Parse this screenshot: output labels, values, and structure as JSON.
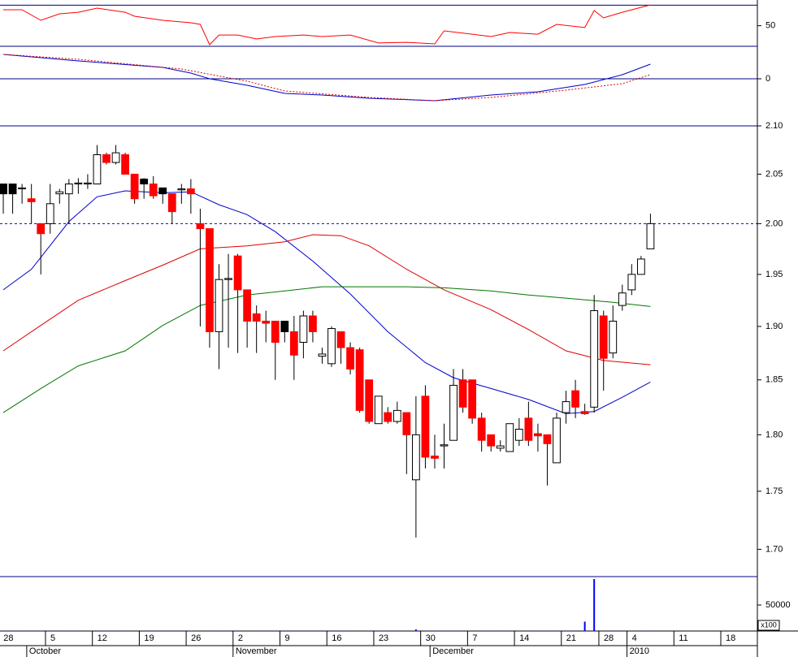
{
  "chart_data": [
    {
      "type": "candlestick",
      "log_scale": true,
      "xlim": [
        -0.35,
        80.4
      ],
      "ylim": [
        1.677,
        2.1
      ],
      "yticks": [
        {
          "value": 2.1,
          "label": "2.10"
        },
        2.05,
        {
          "value": 2.0,
          "label": "2.00"
        },
        1.95,
        {
          "value": 1.9,
          "label": "1.90"
        },
        1.85,
        {
          "value": 1.8,
          "label": "1.80"
        },
        1.75,
        {
          "value": 1.7,
          "label": "1.70"
        }
      ],
      "hlines": [
        2.0
      ],
      "hline_color": "#0000cc",
      "hline_dash": true,
      "open": [
        2.04,
        2.04,
        2.035,
        2.025,
        2.0,
        2.0,
        2.03,
        2.03,
        2.04,
        2.04,
        2.04,
        2.07,
        2.062,
        2.07,
        2.05,
        2.045,
        2.04,
        2.036,
        2.03,
        2.034,
        2.035,
        2.0,
        1.995,
        1.895,
        1.945,
        1.968,
        1.935,
        1.912,
        1.905,
        1.905,
        1.905,
        1.895,
        1.885,
        1.91,
        1.872,
        1.865,
        1.895,
        1.88,
        1.878,
        1.85,
        1.81,
        1.82,
        1.812,
        1.82,
        1.76,
        1.835,
        1.781,
        1.79,
        1.795,
        1.85,
        1.85,
        1.815,
        1.8,
        1.788,
        1.785,
        1.795,
        1.815,
        1.801,
        1.8,
        1.775,
        1.82,
        1.84,
        1.821,
        1.825,
        1.91,
        1.875,
        1.92,
        1.935,
        1.95,
        1.975
      ],
      "high": [
        2.04,
        2.04,
        2.04,
        2.04,
        2.0,
        2.04,
        2.035,
        2.045,
        2.046,
        2.05,
        2.08,
        2.072,
        2.08,
        2.072,
        2.05,
        2.046,
        2.048,
        2.036,
        2.03,
        2.04,
        2.045,
        2.015,
        1.995,
        1.96,
        1.97,
        1.97,
        1.935,
        1.92,
        1.915,
        1.905,
        1.905,
        1.91,
        1.915,
        1.915,
        1.88,
        1.9,
        1.895,
        1.885,
        1.88,
        1.85,
        1.835,
        1.825,
        1.83,
        1.82,
        1.835,
        1.845,
        1.8,
        1.81,
        1.86,
        1.86,
        1.85,
        1.82,
        1.8,
        1.795,
        1.81,
        1.815,
        1.83,
        1.81,
        1.8,
        1.82,
        1.84,
        1.85,
        1.828,
        1.93,
        1.915,
        1.92,
        1.94,
        1.96,
        1.968,
        2.01
      ],
      "low": [
        2.01,
        2.01,
        2.02,
        2.0,
        1.95,
        1.99,
        2.02,
        2.0,
        2.03,
        2.035,
        2.04,
        2.06,
        2.06,
        2.05,
        2.02,
        2.025,
        2.025,
        2.02,
        2.0,
        2.02,
        2.01,
        1.9,
        1.88,
        1.86,
        1.88,
        1.875,
        1.88,
        1.875,
        1.885,
        1.85,
        1.885,
        1.85,
        1.87,
        1.885,
        1.865,
        1.862,
        1.865,
        1.855,
        1.82,
        1.81,
        1.81,
        1.81,
        1.81,
        1.765,
        1.71,
        1.77,
        1.77,
        1.77,
        1.795,
        1.82,
        1.81,
        1.785,
        1.785,
        1.785,
        1.785,
        1.79,
        1.79,
        1.785,
        1.755,
        1.775,
        1.81,
        1.815,
        1.818,
        1.82,
        1.84,
        1.87,
        1.915,
        1.93,
        1.95,
        1.975
      ],
      "close": [
        2.03,
        2.03,
        2.036,
        2.022,
        1.99,
        2.02,
        2.032,
        2.04,
        2.041,
        2.041,
        2.07,
        2.062,
        2.072,
        2.05,
        2.025,
        2.04,
        2.028,
        2.03,
        2.012,
        2.035,
        2.03,
        1.995,
        1.895,
        1.945,
        1.946,
        1.935,
        1.905,
        1.905,
        1.903,
        1.885,
        1.895,
        1.873,
        1.91,
        1.895,
        1.874,
        1.898,
        1.88,
        1.86,
        1.822,
        1.812,
        1.835,
        1.812,
        1.822,
        1.8,
        1.8,
        1.78,
        1.779,
        1.791,
        1.845,
        1.825,
        1.815,
        1.795,
        1.79,
        1.79,
        1.81,
        1.805,
        1.795,
        1.799,
        1.792,
        1.815,
        1.83,
        1.825,
        1.819,
        1.915,
        1.87,
        1.905,
        1.932,
        1.95,
        1.965,
        2.0
      ],
      "colors": [
        "#000000",
        "#000000",
        "#ffffff",
        "#ff0000",
        "#ff0000",
        "#ffffff",
        "#ffffff",
        "#ffffff",
        "#ffffff",
        "#ffffff",
        "#ffffff",
        "#ff0000",
        "#ffffff",
        "#ff0000",
        "#ff0000",
        "#000000",
        "#ff0000",
        "#000000",
        "#ff0000",
        "#ffffff",
        "#ff0000",
        "#ff0000",
        "#ff0000",
        "#ffffff",
        "#ffffff",
        "#ff0000",
        "#ff0000",
        "#ff0000",
        "#ff0000",
        "#ff0000",
        "#000000",
        "#ff0000",
        "#ffffff",
        "#ff0000",
        "#ffffff",
        "#ffffff",
        "#ff0000",
        "#ff0000",
        "#ff0000",
        "#ff0000",
        "#ffffff",
        "#ff0000",
        "#ffffff",
        "#ff0000",
        "#ffffff",
        "#ff0000",
        "#ff0000",
        "#ffffff",
        "#ffffff",
        "#ff0000",
        "#ff0000",
        "#ff0000",
        "#ff0000",
        "#ffffff",
        "#ffffff",
        "#ffffff",
        "#ff0000",
        "#ff0000",
        "#ff0000",
        "#ffffff",
        "#ffffff",
        "#ff0000",
        "#ff0000",
        "#ffffff",
        "#ff0000",
        "#ffffff",
        "#ffffff",
        "#ffffff",
        "#ffffff",
        "#ffffff"
      ],
      "series": [
        {
          "color": "#0000cc",
          "x": [
            0,
            3,
            7,
            10,
            13,
            17,
            20,
            23,
            26,
            29,
            33,
            37,
            41,
            45,
            48,
            52,
            56,
            60,
            63,
            66,
            69
          ],
          "values": [
            1.935,
            1.955,
            2.002,
            2.027,
            2.033,
            2.031,
            2.032,
            2.019,
            2.009,
            1.992,
            1.963,
            1.931,
            1.895,
            1.866,
            1.852,
            1.842,
            1.832,
            1.819,
            1.821,
            1.834,
            1.848
          ]
        },
        {
          "color": "#dd0000",
          "x": [
            0,
            4,
            8,
            13,
            17,
            21,
            26,
            30,
            33,
            36,
            39,
            43,
            47,
            52,
            56,
            60,
            64,
            69
          ],
          "values": [
            1.877,
            1.901,
            1.925,
            1.944,
            1.959,
            1.975,
            1.978,
            1.982,
            1.989,
            1.988,
            1.978,
            1.955,
            1.935,
            1.916,
            1.897,
            1.877,
            1.868,
            1.864
          ]
        },
        {
          "color": "#007700",
          "x": [
            0,
            4,
            8,
            13,
            17,
            21,
            26,
            30,
            34,
            39,
            43,
            47,
            52,
            56,
            60,
            65,
            69
          ],
          "values": [
            1.82,
            1.842,
            1.863,
            1.877,
            1.901,
            1.92,
            1.93,
            1.934,
            1.938,
            1.938,
            1.938,
            1.937,
            1.934,
            1.93,
            1.927,
            1.923,
            1.919
          ]
        }
      ]
    },
    {
      "type": "line",
      "xlim": [
        -0.35,
        80.4
      ],
      "ylim": [
        30,
        75
      ],
      "yticks": [
        50
      ],
      "hlines": [
        30,
        70
      ],
      "hline_color": "#000080",
      "hline_dash": false,
      "series": [
        {
          "color": "#ff0000",
          "x": [
            0,
            2,
            4,
            6,
            8,
            10,
            13,
            14,
            17,
            20,
            21,
            22,
            23,
            25,
            27,
            29,
            32,
            34,
            37,
            40,
            43,
            46,
            47,
            50,
            52,
            54,
            57,
            59,
            62,
            63,
            64,
            66,
            69
          ],
          "values": [
            65.5,
            65.5,
            55.3,
            61.6,
            63.1,
            67.1,
            63.1,
            59.2,
            55.3,
            52.9,
            51.3,
            31.6,
            41.0,
            41.0,
            37.1,
            39.5,
            41.0,
            39.5,
            41.0,
            33.2,
            33.9,
            32.4,
            45.0,
            41.8,
            39.5,
            43.4,
            41.8,
            51.3,
            48.2,
            64.7,
            57.6,
            63.1,
            70.3
          ]
        }
      ]
    },
    {
      "type": "line",
      "xlim": [
        -0.35,
        80.4
      ],
      "ylim": [
        -58,
        40
      ],
      "yticks": [
        0
      ],
      "hlines": [
        0
      ],
      "hline_color": "#000080",
      "hline_dash": false,
      "series": [
        {
          "color": "#0000cc",
          "dash": false,
          "x": [
            0,
            8,
            17,
            20,
            22,
            26,
            30,
            34,
            39,
            46,
            52,
            57,
            62,
            66,
            69
          ],
          "values": [
            30,
            22,
            14,
            7,
            0,
            -8,
            -18,
            -20,
            -24,
            -27,
            -20,
            -16,
            -7,
            5,
            18
          ]
        },
        {
          "color": "#dd0000",
          "dash": true,
          "x": [
            0,
            8,
            19,
            26,
            30,
            39,
            46,
            52,
            60,
            66,
            69
          ],
          "values": [
            30,
            24,
            12,
            -3,
            -15,
            -23,
            -27,
            -23,
            -14,
            -6,
            5
          ]
        }
      ]
    },
    {
      "type": "bar",
      "xlim": [
        -0.35,
        80.4
      ],
      "ylim": [
        0,
        104700
      ],
      "yticks": [
        50000
      ],
      "unit_label": "x100",
      "color": "#0000ff",
      "values": [
        500,
        500,
        500,
        500,
        500,
        500,
        500,
        500,
        500,
        500,
        500,
        500,
        500,
        500,
        500,
        500,
        500,
        500,
        500,
        500,
        500,
        500,
        500,
        500,
        500,
        500,
        500,
        500,
        500,
        500,
        500,
        500,
        500,
        500,
        500,
        500,
        500,
        500,
        500,
        500,
        500,
        500,
        500,
        500,
        3000,
        500,
        500,
        500,
        500,
        500,
        500,
        500,
        500,
        500,
        500,
        500,
        500,
        500,
        500,
        500,
        500,
        500,
        18000,
        100000,
        500,
        500,
        500,
        500,
        500,
        500
      ],
      "xticks": [
        {
          "value": 0,
          "label": "28"
        },
        {
          "value": 5,
          "label": "5"
        },
        {
          "value": 10,
          "label": "12"
        },
        {
          "value": 15,
          "label": "19"
        },
        {
          "value": 20,
          "label": "26"
        },
        {
          "value": 25,
          "label": "2"
        },
        {
          "value": 30,
          "label": "9"
        },
        {
          "value": 35,
          "label": "16"
        },
        {
          "value": 40,
          "label": "23"
        },
        {
          "value": 45,
          "label": "30"
        },
        {
          "value": 50,
          "label": "7"
        },
        {
          "value": 55,
          "label": "14"
        },
        {
          "value": 60,
          "label": "21"
        },
        {
          "value": 64,
          "label": "28"
        },
        {
          "value": 67,
          "label": "4"
        },
        {
          "value": 72,
          "label": "11"
        },
        {
          "value": 77,
          "label": "18"
        }
      ],
      "month_ticks": [
        {
          "value": 3,
          "label": "October"
        },
        {
          "value": 25,
          "label": "November"
        },
        {
          "value": 46,
          "label": "December"
        },
        {
          "value": 67,
          "label": "2010"
        }
      ]
    }
  ]
}
